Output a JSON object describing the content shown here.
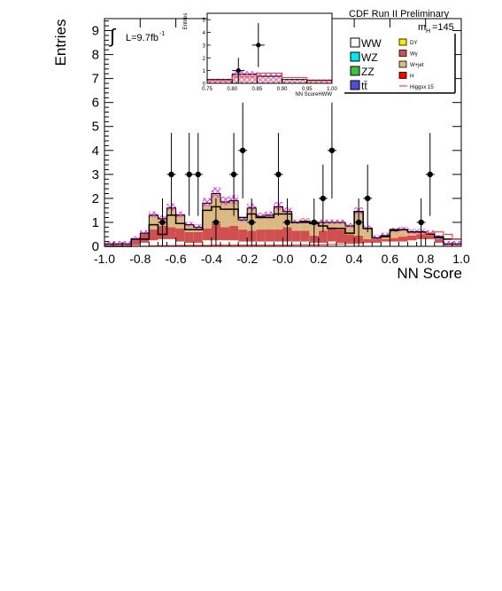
{
  "chart_data": {
    "type": "bar",
    "header_text": "CDF Run II Preliminary",
    "mass_label": "m",
    "mass_sub": "H",
    "mass_value": "=145",
    "lumi_text": "L=9.7fb",
    "lumi_sup": "-1",
    "integral_sign": "∫",
    "xlabel": "NN Score",
    "ylabel": "Entries",
    "xlim": [
      -1.0,
      1.0
    ],
    "ylim": [
      0,
      9.5
    ],
    "x_ticks": [
      "-1.0",
      "-0.8",
      "-0.6",
      "-0.4",
      "-0.2",
      "-0.0",
      "0.2",
      "0.4",
      "0.6",
      "0.8",
      "1.0"
    ],
    "y_ticks": [
      "0",
      "1",
      "2",
      "3",
      "4",
      "5",
      "6",
      "7",
      "8",
      "9"
    ],
    "bin_edges": [
      -1.0,
      -0.85,
      -0.8,
      -0.75,
      -0.7,
      -0.65,
      -0.6,
      -0.55,
      -0.5,
      -0.45,
      -0.4,
      -0.35,
      -0.3,
      -0.25,
      -0.2,
      -0.15,
      -0.1,
      -0.05,
      0.0,
      0.05,
      0.1,
      0.15,
      0.2,
      0.25,
      0.3,
      0.35,
      0.4,
      0.45,
      0.5,
      0.55,
      0.6,
      0.65,
      0.7,
      0.75,
      0.8,
      0.85,
      0.9,
      0.95,
      1.0
    ],
    "stack_layers": [
      {
        "name": "WW",
        "color": "#ffffff",
        "values": [
          0.05,
          0.05,
          0.15,
          0.25,
          0.3,
          0.3,
          0.2,
          0.15,
          0.15,
          0.25,
          0.25,
          0.25,
          0.25,
          0.2,
          0.2,
          0.2,
          0.2,
          0.2,
          0.2,
          0.2,
          0.2,
          0.15,
          0.15,
          0.2,
          0.15,
          0.15,
          0.15,
          0.15,
          0.15,
          0.2,
          0.2,
          0.2,
          0.25,
          0.3,
          0.3,
          0.15,
          0.05,
          0.05
        ]
      },
      {
        "name": "Wγ",
        "color": "#d05050",
        "values": [
          0.05,
          0.25,
          0.4,
          0.45,
          0.55,
          0.5,
          0.55,
          0.45,
          0.45,
          0.5,
          0.7,
          0.55,
          0.6,
          0.5,
          0.45,
          0.5,
          0.5,
          0.5,
          0.6,
          0.45,
          0.45,
          0.3,
          0.5,
          0.6,
          0.55,
          0.35,
          0.3,
          0.15,
          0.15,
          0.1,
          0.1,
          0.2,
          0.2,
          0.2,
          0.15,
          0.15,
          0.05,
          0.05
        ]
      },
      {
        "name": "W+jet",
        "color": "#dcb882",
        "values": [
          0.0,
          0.0,
          0.0,
          0.6,
          0.3,
          0.8,
          0.55,
          0.3,
          0.2,
          1.05,
          1.25,
          1.05,
          1.05,
          0.4,
          0.95,
          0.55,
          0.6,
          0.95,
          0.65,
          0.35,
          0.4,
          0.5,
          0.35,
          0.2,
          0.3,
          0.35,
          1.0,
          0.45,
          0.05,
          0.15,
          0.35,
          0.3,
          0.15,
          0.1,
          0.1,
          0.05,
          0.0,
          0.0
        ]
      },
      {
        "name": "ZZ",
        "color": "#40c040",
        "values": [
          0.0,
          0.0,
          0.0,
          0.0,
          0.0,
          0.0,
          0.0,
          0.0,
          0.0,
          0.0,
          0.0,
          0.0,
          0.0,
          0.0,
          0.0,
          0.0,
          0.0,
          0.0,
          0.0,
          0.0,
          0.0,
          0.0,
          0.0,
          0.0,
          0.0,
          0.0,
          0.0,
          0.0,
          0.0,
          0.0,
          0.0,
          0.0,
          0.0,
          0.0,
          0.0,
          0.0,
          0.0,
          0.0
        ]
      }
    ],
    "black_hist": [
      0.0,
      0.3,
      0.3,
      0.9,
      0.5,
      1.3,
      0.95,
      0.7,
      0.7,
      1.5,
      1.65,
      1.55,
      1.55,
      1.2,
      1.35,
      1.2,
      1.2,
      1.35,
      1.35,
      1.0,
      1.0,
      0.95,
      0.85,
      0.75,
      0.75,
      0.55,
      1.45,
      0.75,
      0.35,
      0.4,
      0.7,
      0.7,
      0.6,
      0.6,
      0.5,
      0.4,
      0.3,
      0.3
    ],
    "higgs_values": [
      0.0,
      0.0,
      0.0,
      0.02,
      0.03,
      0.03,
      0.04,
      0.04,
      0.04,
      0.04,
      0.05,
      0.05,
      0.05,
      0.05,
      0.05,
      0.05,
      0.05,
      0.05,
      0.05,
      0.06,
      0.06,
      0.06,
      0.07,
      0.08,
      0.1,
      0.12,
      0.14,
      0.18,
      0.22,
      0.28,
      0.32,
      0.38,
      0.42,
      0.48,
      0.55,
      0.6,
      0.5,
      0.3
    ],
    "data_points": [
      {
        "x": -0.675,
        "y": 1,
        "err": 1.0
      },
      {
        "x": -0.625,
        "y": 3,
        "err": 1.73
      },
      {
        "x": -0.525,
        "y": 3,
        "err": 1.73
      },
      {
        "x": -0.475,
        "y": 3,
        "err": 1.73
      },
      {
        "x": -0.375,
        "y": 1,
        "err": 1.0
      },
      {
        "x": -0.275,
        "y": 3,
        "err": 1.73
      },
      {
        "x": -0.225,
        "y": 4,
        "err": 2.0
      },
      {
        "x": -0.175,
        "y": 1,
        "err": 1.0
      },
      {
        "x": -0.025,
        "y": 3,
        "err": 1.73
      },
      {
        "x": 0.025,
        "y": 1,
        "err": 1.0
      },
      {
        "x": 0.175,
        "y": 1,
        "err": 1.0
      },
      {
        "x": 0.225,
        "y": 2,
        "err": 1.41
      },
      {
        "x": 0.275,
        "y": 4,
        "err": 2.0
      },
      {
        "x": 0.425,
        "y": 1,
        "err": 1.0
      },
      {
        "x": 0.475,
        "y": 2,
        "err": 1.41
      },
      {
        "x": 0.775,
        "y": 1,
        "err": 1.0
      },
      {
        "x": 0.825,
        "y": 3,
        "err": 1.73
      }
    ],
    "legend": [
      {
        "label": "WW",
        "color": "#ffffff",
        "size": "big"
      },
      {
        "label": "WZ",
        "color": "#00e8f0",
        "size": "big"
      },
      {
        "label": "ZZ",
        "color": "#40c040",
        "size": "big"
      },
      {
        "label": "tt̄",
        "color": "#5050d0",
        "size": "big"
      },
      {
        "label": "DY",
        "color": "#f0f000",
        "size": "small"
      },
      {
        "label": "Wγ",
        "color": "#d05050",
        "size": "small"
      },
      {
        "label": "W+jet",
        "color": "#dcb882",
        "size": "small"
      },
      {
        "label": "H",
        "color": "#ff0000",
        "size": "small"
      },
      {
        "label": "Higgsx 15",
        "color": "#ff4040",
        "size": "line"
      }
    ],
    "colors": {
      "uncertainty_hatch": "#e040e0",
      "higgs_line": "#ff4040",
      "data": "#000000"
    },
    "inset": {
      "xlabel": "NN ScoreHWW",
      "ylabel": "Entries",
      "xlim": [
        0.75,
        1.0
      ],
      "ylim": [
        0,
        5.5
      ],
      "x_ticks": [
        "0.75",
        "0.80",
        "0.85",
        "0.90",
        "0.95",
        "1.00"
      ],
      "y_ticks": [
        "0",
        "1",
        "2",
        "3",
        "4",
        "5"
      ],
      "bin_edges": [
        0.75,
        0.8,
        0.85,
        0.9,
        0.95,
        1.0
      ],
      "background": [
        0.3,
        0.7,
        0.55,
        0.3,
        0.25
      ],
      "hatch_top": [
        0.35,
        0.95,
        0.75,
        0.35,
        0.3
      ],
      "higgs_line": [
        0.2,
        0.5,
        0.8,
        0.45,
        0.2
      ],
      "data_points": [
        {
          "x": 0.8125,
          "y": 1,
          "err": 1.0
        },
        {
          "x": 0.8525,
          "y": 3,
          "err": 1.73
        }
      ]
    }
  }
}
